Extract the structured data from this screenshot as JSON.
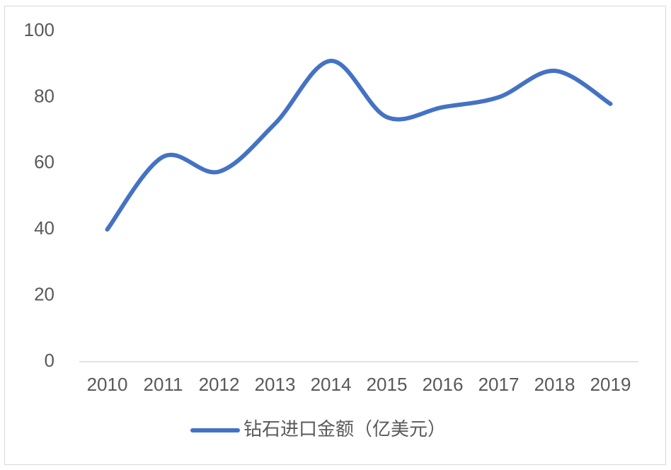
{
  "chart_data": {
    "type": "line",
    "categories": [
      "2010",
      "2011",
      "2012",
      "2013",
      "2014",
      "2015",
      "2016",
      "2017",
      "2018",
      "2019"
    ],
    "series": [
      {
        "name": "钻石进口金额（亿美元）",
        "color": "#4472c4",
        "values": [
          40,
          62,
          57.5,
          72,
          91,
          74,
          77,
          80,
          88,
          78
        ]
      }
    ],
    "ylim": [
      0,
      100
    ],
    "yticks": [
      0,
      20,
      40,
      60,
      80,
      100
    ],
    "grid": false,
    "smooth": true,
    "legend": "bottom"
  }
}
